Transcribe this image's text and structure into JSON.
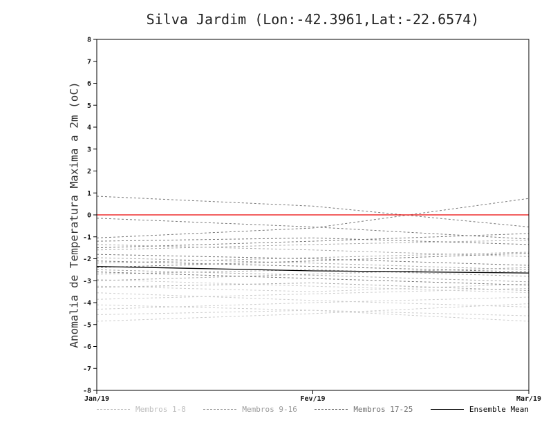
{
  "chart_data": {
    "type": "line",
    "title": "Silva Jardim (Lon:-42.3961,Lat:-22.6574)",
    "ylabel": "Anomalia de Temperatura Maxima a 2m (oC)",
    "xlabel": "",
    "x_categories": [
      "Jan/19",
      "Fev/19",
      "Mar/19"
    ],
    "ylim": [
      -8,
      8
    ],
    "ytick_step": 1,
    "grid": false,
    "legend_position": "bottom",
    "zero_line": {
      "color": "#ee2c2c",
      "values": [
        0,
        0,
        0
      ]
    },
    "groups": [
      {
        "name": "Membros 1-8",
        "color": "#cdcdcd",
        "dash": "3 3",
        "members": [
          [
            -2.95,
            -3.25,
            -3.55
          ],
          [
            -3.25,
            -3.5,
            -3.15
          ],
          [
            -3.55,
            -3.9,
            -4.2
          ],
          [
            -3.85,
            -3.6,
            -3.35
          ],
          [
            -4.1,
            -4.35,
            -4.6
          ],
          [
            -4.3,
            -4.0,
            -3.75
          ],
          [
            -4.55,
            -4.35,
            -4.85
          ],
          [
            -4.85,
            -4.5,
            -4.05
          ]
        ]
      },
      {
        "name": "Membros 9-16",
        "color": "#a9a9a9",
        "dash": "3 3",
        "members": [
          [
            -1.35,
            -1.6,
            -1.9
          ],
          [
            -1.6,
            -1.35,
            -1.15
          ],
          [
            -1.95,
            -2.2,
            -2.5
          ],
          [
            -2.2,
            -1.95,
            -1.7
          ],
          [
            -2.5,
            -2.75,
            -3.05
          ],
          [
            -2.7,
            -2.5,
            -2.8
          ],
          [
            -3.0,
            -2.7,
            -2.4
          ],
          [
            -3.3,
            -3.1,
            -3.45
          ]
        ]
      },
      {
        "name": "Membros 17-25",
        "color": "#777777",
        "dash": "3 3",
        "members": [
          [
            0.85,
            0.4,
            -0.55
          ],
          [
            -0.15,
            -0.55,
            -1.1
          ],
          [
            -1.05,
            -0.6,
            0.75
          ],
          [
            -1.2,
            -1.05,
            -1.35
          ],
          [
            -1.5,
            -1.2,
            -0.85
          ],
          [
            -1.8,
            -2.0,
            -2.3
          ],
          [
            -2.1,
            -2.35,
            -2.6
          ],
          [
            -2.4,
            -2.1,
            -1.75
          ],
          [
            -2.6,
            -2.9,
            -3.2
          ]
        ]
      }
    ],
    "ensemble_mean": {
      "name": "Ensemble Mean",
      "color": "#000000",
      "values": [
        -2.35,
        -2.55,
        -2.65
      ]
    },
    "legend": [
      {
        "label": "Membros 1-8",
        "color": "#bdbdbd",
        "style": "dashed"
      },
      {
        "label": "Membros 9-16",
        "color": "#9a9a9a",
        "style": "dashed"
      },
      {
        "label": "Membros 17-25",
        "color": "#6f6f6f",
        "style": "dashed"
      },
      {
        "label": "Ensemble Mean",
        "color": "#000000",
        "style": "solid"
      }
    ]
  }
}
